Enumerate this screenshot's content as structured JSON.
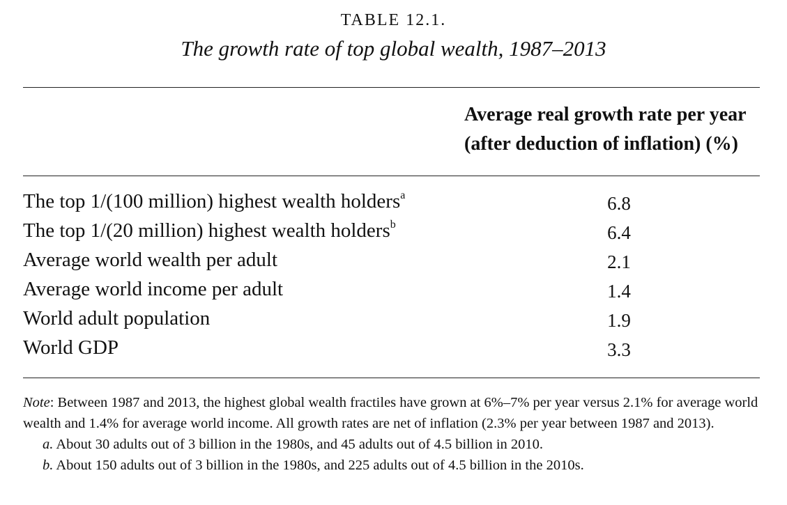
{
  "table": {
    "label": "TABLE 12.1.",
    "title": "The growth rate of top global wealth, 1987–2013",
    "column_header": {
      "line1": "Average real growth rate per year",
      "line2": "(after deduction of inflation) (%)"
    },
    "rows": [
      {
        "label": "The top 1/(100 million) highest wealth holders",
        "footnote_mark": "a",
        "value": "6.8"
      },
      {
        "label": "The top 1/(20 million) highest wealth holders",
        "footnote_mark": "b",
        "value": "6.4"
      },
      {
        "label": "Average world wealth per adult",
        "footnote_mark": "",
        "value": "2.1"
      },
      {
        "label": "Average world income per adult",
        "footnote_mark": "",
        "value": "1.4"
      },
      {
        "label": "World adult population",
        "footnote_mark": "",
        "value": "1.9"
      },
      {
        "label": "World GDP",
        "footnote_mark": "",
        "value": "3.3"
      }
    ]
  },
  "note": {
    "lead": "Note",
    "text": ": Between 1987 and 2013, the highest global wealth fractiles have grown at 6%–7% per year versus 2.1% for average world wealth and 1.4% for average world income. All growth rates are net of inflation (2.3% per year between 1987 and 2013).",
    "footnotes": [
      {
        "mark": "a.",
        "text": " About 30 adults out of 3 billion in the 1980s, and 45 adults out of 4.5 billion in 2010."
      },
      {
        "mark": "b.",
        "text": " About 150 adults out of 3 billion in the 1980s, and 225 adults out of 4.5 billion in the 2010s."
      }
    ]
  }
}
